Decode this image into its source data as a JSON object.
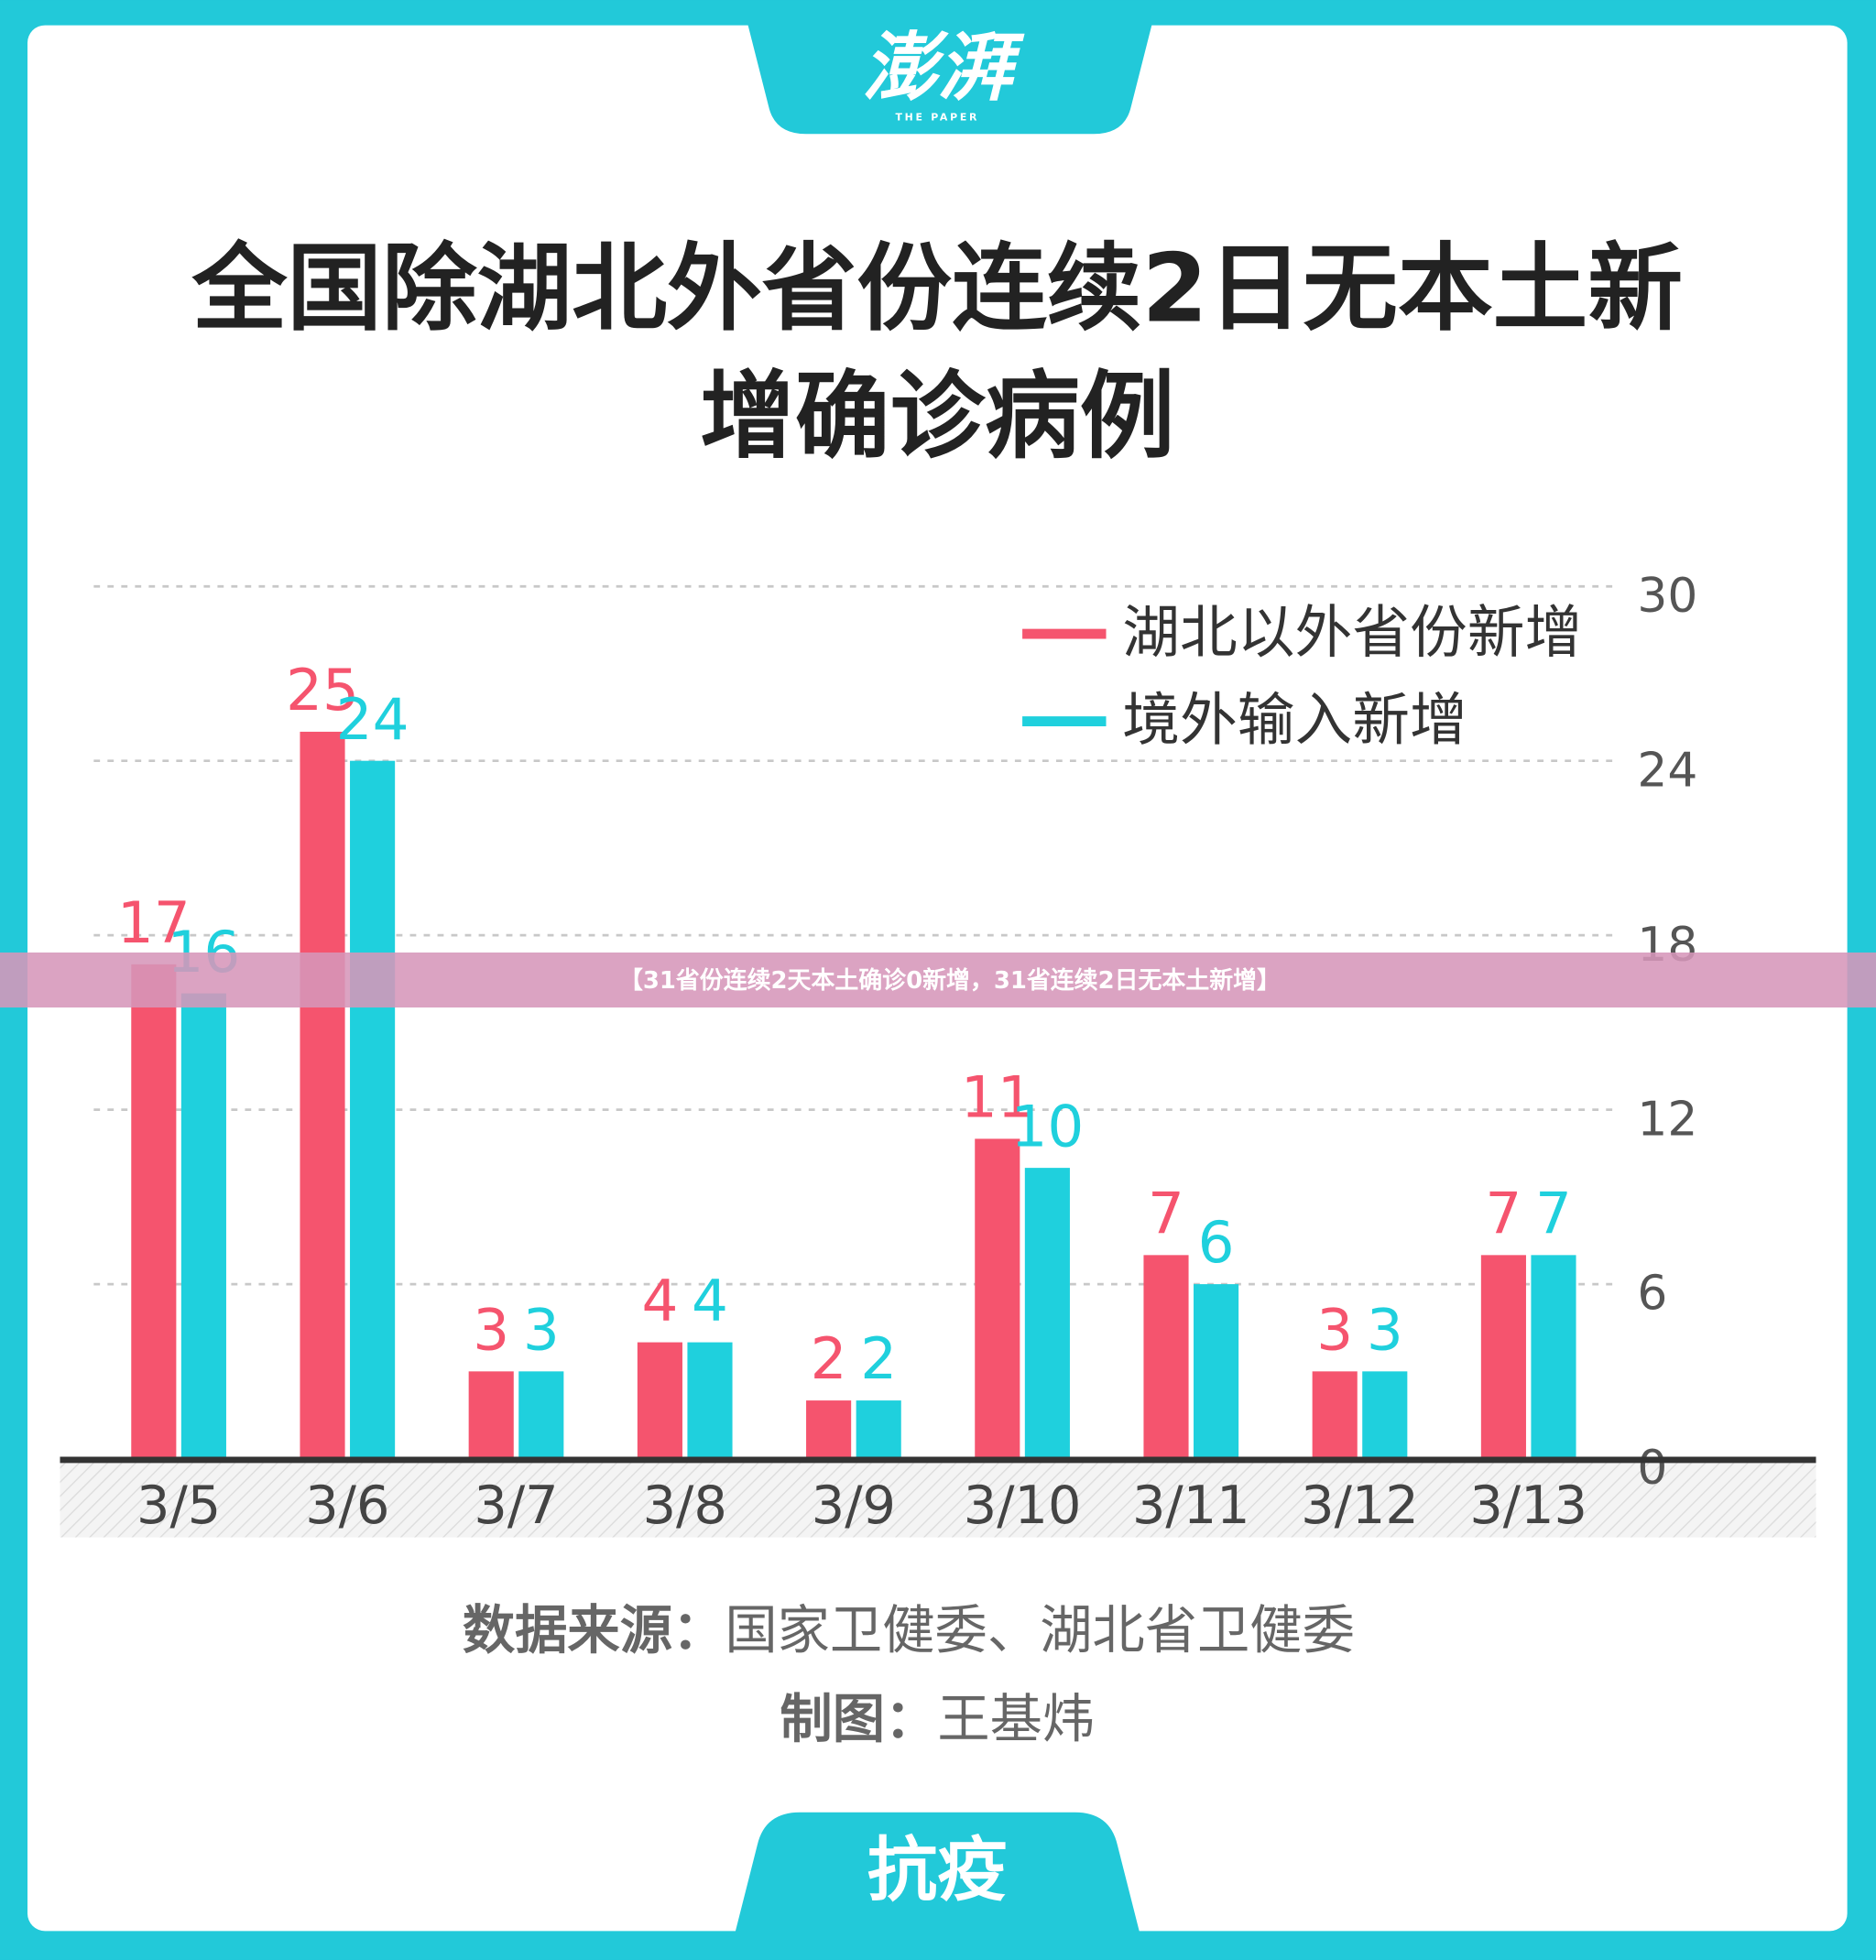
{
  "header": {
    "logo": "澎湃",
    "logo_sub": "THE PAPER"
  },
  "chart_data": {
    "type": "bar",
    "title": [
      "全国除湖北外省份连续2日无本土新",
      "增确诊病例"
    ],
    "categories": [
      "3/5",
      "3/6",
      "3/7",
      "3/8",
      "3/9",
      "3/10",
      "3/11",
      "3/12",
      "3/13"
    ],
    "series": [
      {
        "name": "湖北以外省份新增",
        "color": "#f5546e",
        "values": [
          17,
          25,
          3,
          4,
          2,
          11,
          7,
          3,
          7
        ]
      },
      {
        "name": "境外输入新增",
        "color": "#1fd0dd",
        "values": [
          16,
          24,
          3,
          4,
          2,
          10,
          6,
          3,
          7
        ]
      }
    ],
    "ylim": [
      0,
      30
    ],
    "yticks": [
      0,
      6,
      12,
      18,
      24,
      30
    ],
    "grid": true,
    "legend": "top-right"
  },
  "footer": {
    "source_label": "数据来源：",
    "source": "国家卫健委、湖北省卫健委",
    "maker_label": "制图：",
    "maker": "王基炜",
    "tab": "抗疫"
  },
  "banner": "【31省份连续2天本土确诊0新增，31省连续2日无本土新增】"
}
